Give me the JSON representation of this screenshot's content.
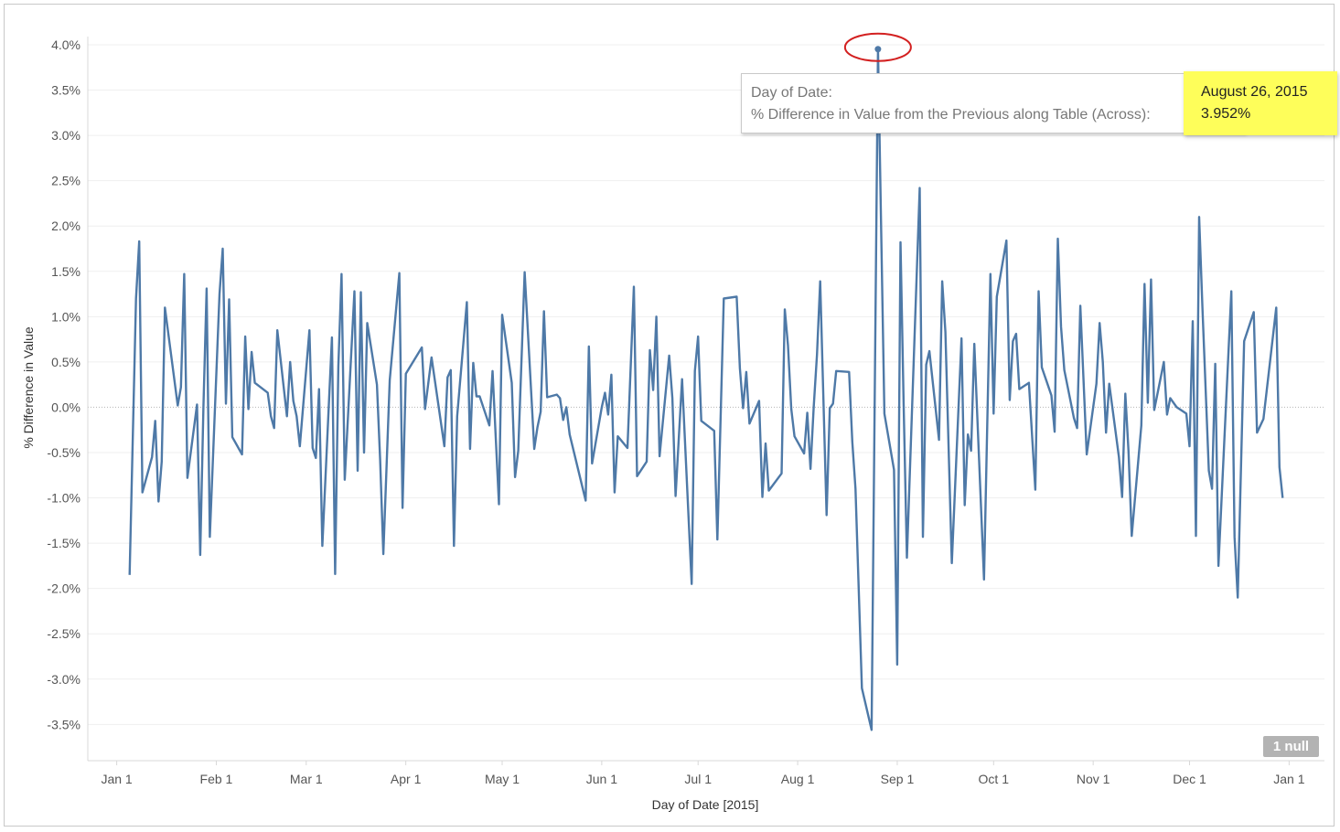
{
  "chart_data": {
    "type": "line",
    "xlabel": "Day of Date [2015]",
    "ylabel": "% Difference in Value",
    "x_tick_labels": [
      "Jan 1",
      "Feb 1",
      "Mar 1",
      "Apr 1",
      "May 1",
      "Jun 1",
      "Jul 1",
      "Aug 1",
      "Sep 1",
      "Oct 1",
      "Nov 1",
      "Dec 1",
      "Jan 1"
    ],
    "x_tick_dates": [
      "2015-01-01",
      "2015-02-01",
      "2015-03-01",
      "2015-04-01",
      "2015-05-01",
      "2015-06-01",
      "2015-07-01",
      "2015-08-01",
      "2015-09-01",
      "2015-10-01",
      "2015-11-01",
      "2015-12-01",
      "2016-01-01"
    ],
    "y_tick_labels": [
      "4.0%",
      "3.5%",
      "3.0%",
      "2.5%",
      "2.0%",
      "1.5%",
      "1.0%",
      "0.5%",
      "0.0%",
      "-0.5%",
      "-1.0%",
      "-1.5%",
      "-2.0%",
      "-2.5%",
      "-3.0%",
      "-3.5%"
    ],
    "y_tick_values": [
      4.0,
      3.5,
      3.0,
      2.5,
      2.0,
      1.5,
      1.0,
      0.5,
      0.0,
      -0.5,
      -1.0,
      -1.5,
      -2.0,
      -2.5,
      -3.0,
      -3.5
    ],
    "xlim": [
      "2014-12-23",
      "2016-01-12"
    ],
    "ylim": [
      -3.9,
      4.05
    ],
    "grid": true,
    "null_count_label": "1 null",
    "series": [
      {
        "color": "#4e79a7",
        "points": [
          [
            "2015-01-05",
            -1.85
          ],
          [
            "2015-01-07",
            1.2
          ],
          [
            "2015-01-08",
            1.83
          ],
          [
            "2015-01-09",
            -0.94
          ],
          [
            "2015-01-12",
            -0.55
          ],
          [
            "2015-01-13",
            -0.15
          ],
          [
            "2015-01-14",
            -1.04
          ],
          [
            "2015-01-15",
            -0.6
          ],
          [
            "2015-01-16",
            1.1
          ],
          [
            "2015-01-20",
            0.02
          ],
          [
            "2015-01-21",
            0.22
          ],
          [
            "2015-01-22",
            1.47
          ],
          [
            "2015-01-23",
            -0.78
          ],
          [
            "2015-01-26",
            0.03
          ],
          [
            "2015-01-27",
            -1.63
          ],
          [
            "2015-01-28",
            0.0
          ],
          [
            "2015-01-29",
            1.31
          ],
          [
            "2015-01-30",
            -1.43
          ],
          [
            "2015-02-02",
            1.25
          ],
          [
            "2015-02-03",
            1.75
          ],
          [
            "2015-02-04",
            0.04
          ],
          [
            "2015-02-05",
            1.19
          ],
          [
            "2015-02-06",
            -0.33
          ],
          [
            "2015-02-09",
            -0.52
          ],
          [
            "2015-02-10",
            0.78
          ],
          [
            "2015-02-11",
            -0.02
          ],
          [
            "2015-02-12",
            0.61
          ],
          [
            "2015-02-13",
            0.27
          ],
          [
            "2015-02-17",
            0.16
          ],
          [
            "2015-02-18",
            -0.1
          ],
          [
            "2015-02-19",
            -0.23
          ],
          [
            "2015-02-20",
            0.85
          ],
          [
            "2015-02-23",
            -0.1
          ],
          [
            "2015-02-24",
            0.5
          ],
          [
            "2015-02-25",
            0.07
          ],
          [
            "2015-02-26",
            -0.1
          ],
          [
            "2015-02-27",
            -0.43
          ],
          [
            "2015-03-02",
            0.85
          ],
          [
            "2015-03-03",
            -0.45
          ],
          [
            "2015-03-04",
            -0.56
          ],
          [
            "2015-03-05",
            0.2
          ],
          [
            "2015-03-06",
            -1.53
          ],
          [
            "2015-03-09",
            0.77
          ],
          [
            "2015-03-10",
            -1.84
          ],
          [
            "2015-03-11",
            0.45
          ],
          [
            "2015-03-12",
            1.47
          ],
          [
            "2015-03-13",
            -0.8
          ],
          [
            "2015-03-16",
            1.28
          ],
          [
            "2015-03-17",
            -0.7
          ],
          [
            "2015-03-18",
            1.27
          ],
          [
            "2015-03-19",
            -0.5
          ],
          [
            "2015-03-20",
            0.93
          ],
          [
            "2015-03-23",
            0.25
          ],
          [
            "2015-03-24",
            -0.58
          ],
          [
            "2015-03-25",
            -1.62
          ],
          [
            "2015-03-27",
            0.3
          ],
          [
            "2015-03-30",
            1.48
          ],
          [
            "2015-03-31",
            -1.11
          ],
          [
            "2015-04-01",
            0.37
          ],
          [
            "2015-04-06",
            0.66
          ],
          [
            "2015-04-07",
            -0.02
          ],
          [
            "2015-04-09",
            0.55
          ],
          [
            "2015-04-13",
            -0.43
          ],
          [
            "2015-04-14",
            0.33
          ],
          [
            "2015-04-15",
            0.41
          ],
          [
            "2015-04-16",
            -1.53
          ],
          [
            "2015-04-17",
            -0.1
          ],
          [
            "2015-04-20",
            1.16
          ],
          [
            "2015-04-21",
            -0.46
          ],
          [
            "2015-04-22",
            0.49
          ],
          [
            "2015-04-23",
            0.12
          ],
          [
            "2015-04-24",
            0.12
          ],
          [
            "2015-04-27",
            -0.2
          ],
          [
            "2015-04-28",
            0.4
          ],
          [
            "2015-04-30",
            -1.07
          ],
          [
            "2015-05-01",
            1.02
          ],
          [
            "2015-05-04",
            0.27
          ],
          [
            "2015-05-05",
            -0.77
          ],
          [
            "2015-05-06",
            -0.48
          ],
          [
            "2015-05-08",
            1.49
          ],
          [
            "2015-05-11",
            -0.46
          ],
          [
            "2015-05-12",
            -0.22
          ],
          [
            "2015-05-13",
            -0.05
          ],
          [
            "2015-05-14",
            1.06
          ],
          [
            "2015-05-15",
            0.11
          ],
          [
            "2015-05-18",
            0.14
          ],
          [
            "2015-05-19",
            0.1
          ],
          [
            "2015-05-20",
            -0.14
          ],
          [
            "2015-05-21",
            0.0
          ],
          [
            "2015-05-22",
            -0.3
          ],
          [
            "2015-05-27",
            -1.03
          ],
          [
            "2015-05-28",
            0.67
          ],
          [
            "2015-05-29",
            -0.62
          ],
          [
            "2015-06-01",
            0.0
          ],
          [
            "2015-06-02",
            0.16
          ],
          [
            "2015-06-03",
            -0.08
          ],
          [
            "2015-06-04",
            0.36
          ],
          [
            "2015-06-05",
            -0.94
          ],
          [
            "2015-06-06",
            -0.32
          ],
          [
            "2015-06-09",
            -0.45
          ],
          [
            "2015-06-11",
            1.33
          ],
          [
            "2015-06-12",
            -0.76
          ],
          [
            "2015-06-15",
            -0.6
          ],
          [
            "2015-06-16",
            0.63
          ],
          [
            "2015-06-17",
            0.19
          ],
          [
            "2015-06-18",
            1.0
          ],
          [
            "2015-06-19",
            -0.54
          ],
          [
            "2015-06-22",
            0.57
          ],
          [
            "2015-06-23",
            0.1
          ],
          [
            "2015-06-24",
            -0.98
          ],
          [
            "2015-06-26",
            0.31
          ],
          [
            "2015-06-29",
            -1.95
          ],
          [
            "2015-06-30",
            0.4
          ],
          [
            "2015-07-01",
            0.78
          ],
          [
            "2015-07-02",
            -0.15
          ],
          [
            "2015-07-06",
            -0.26
          ],
          [
            "2015-07-07",
            -1.46
          ],
          [
            "2015-07-09",
            1.2
          ],
          [
            "2015-07-13",
            1.22
          ],
          [
            "2015-07-14",
            0.43
          ],
          [
            "2015-07-15",
            -0.01
          ],
          [
            "2015-07-16",
            0.39
          ],
          [
            "2015-07-17",
            -0.18
          ],
          [
            "2015-07-20",
            0.07
          ],
          [
            "2015-07-21",
            -0.99
          ],
          [
            "2015-07-22",
            -0.4
          ],
          [
            "2015-07-23",
            -0.92
          ],
          [
            "2015-07-27",
            -0.73
          ],
          [
            "2015-07-28",
            1.08
          ],
          [
            "2015-07-29",
            0.68
          ],
          [
            "2015-07-30",
            -0.02
          ],
          [
            "2015-07-31",
            -0.32
          ],
          [
            "2015-08-03",
            -0.51
          ],
          [
            "2015-08-04",
            -0.06
          ],
          [
            "2015-08-05",
            -0.68
          ],
          [
            "2015-08-06",
            0.0
          ],
          [
            "2015-08-07",
            0.58
          ],
          [
            "2015-08-08",
            1.39
          ],
          [
            "2015-08-10",
            -1.19
          ],
          [
            "2015-08-11",
            -0.01
          ],
          [
            "2015-08-12",
            0.04
          ],
          [
            "2015-08-13",
            0.4
          ],
          [
            "2015-08-17",
            0.39
          ],
          [
            "2015-08-18",
            -0.38
          ],
          [
            "2015-08-19",
            -0.9
          ],
          [
            "2015-08-21",
            -3.1
          ],
          [
            "2015-08-24",
            -3.56
          ],
          [
            "2015-08-26",
            3.952
          ],
          [
            "2015-08-28",
            -0.07
          ],
          [
            "2015-08-31",
            -0.69
          ],
          [
            "2015-09-01",
            -2.84
          ],
          [
            "2015-09-02",
            1.82
          ],
          [
            "2015-09-03",
            0.0
          ],
          [
            "2015-09-04",
            -1.66
          ],
          [
            "2015-09-08",
            2.42
          ],
          [
            "2015-09-09",
            -1.43
          ],
          [
            "2015-09-10",
            0.47
          ],
          [
            "2015-09-11",
            0.62
          ],
          [
            "2015-09-14",
            -0.36
          ],
          [
            "2015-09-15",
            1.39
          ],
          [
            "2015-09-16",
            0.83
          ],
          [
            "2015-09-18",
            -1.72
          ],
          [
            "2015-09-21",
            0.76
          ],
          [
            "2015-09-22",
            -1.08
          ],
          [
            "2015-09-23",
            -0.3
          ],
          [
            "2015-09-24",
            -0.48
          ],
          [
            "2015-09-25",
            0.7
          ],
          [
            "2015-09-28",
            -1.9
          ],
          [
            "2015-09-30",
            1.47
          ],
          [
            "2015-10-01",
            -0.07
          ],
          [
            "2015-10-02",
            1.22
          ],
          [
            "2015-10-05",
            1.84
          ],
          [
            "2015-10-06",
            0.08
          ],
          [
            "2015-10-07",
            0.73
          ],
          [
            "2015-10-08",
            0.81
          ],
          [
            "2015-10-09",
            0.2
          ],
          [
            "2015-10-12",
            0.27
          ],
          [
            "2015-10-14",
            -0.91
          ],
          [
            "2015-10-15",
            1.28
          ],
          [
            "2015-10-16",
            0.44
          ],
          [
            "2015-10-19",
            0.13
          ],
          [
            "2015-10-20",
            -0.27
          ],
          [
            "2015-10-21",
            1.86
          ],
          [
            "2015-10-22",
            0.89
          ],
          [
            "2015-10-23",
            0.41
          ],
          [
            "2015-10-26",
            -0.12
          ],
          [
            "2015-10-27",
            -0.23
          ],
          [
            "2015-10-28",
            1.12
          ],
          [
            "2015-10-30",
            -0.52
          ],
          [
            "2015-11-02",
            0.26
          ],
          [
            "2015-11-03",
            0.93
          ],
          [
            "2015-11-04",
            0.5
          ],
          [
            "2015-11-05",
            -0.28
          ],
          [
            "2015-11-06",
            0.26
          ],
          [
            "2015-11-09",
            -0.55
          ],
          [
            "2015-11-10",
            -0.99
          ],
          [
            "2015-11-11",
            0.15
          ],
          [
            "2015-11-12",
            -0.49
          ],
          [
            "2015-11-13",
            -1.42
          ],
          [
            "2015-11-16",
            -0.2
          ],
          [
            "2015-11-17",
            1.36
          ],
          [
            "2015-11-18",
            0.05
          ],
          [
            "2015-11-19",
            1.41
          ],
          [
            "2015-11-20",
            -0.03
          ],
          [
            "2015-11-23",
            0.5
          ],
          [
            "2015-11-24",
            -0.08
          ],
          [
            "2015-11-25",
            0.1
          ],
          [
            "2015-11-27",
            0.0
          ],
          [
            "2015-11-30",
            -0.07
          ],
          [
            "2015-12-01",
            -0.43
          ],
          [
            "2015-12-02",
            0.95
          ],
          [
            "2015-12-03",
            -1.42
          ],
          [
            "2015-12-04",
            2.1
          ],
          [
            "2015-12-05",
            1.1
          ],
          [
            "2015-12-07",
            -0.7
          ],
          [
            "2015-12-08",
            -0.9
          ],
          [
            "2015-12-09",
            0.48
          ],
          [
            "2015-12-10",
            -1.75
          ],
          [
            "2015-12-14",
            1.28
          ],
          [
            "2015-12-15",
            -1.43
          ],
          [
            "2015-12-16",
            -2.1
          ],
          [
            "2015-12-18",
            0.73
          ],
          [
            "2015-12-21",
            1.05
          ],
          [
            "2015-12-22",
            -0.28
          ],
          [
            "2015-12-24",
            -0.13
          ],
          [
            "2015-12-28",
            1.1
          ],
          [
            "2015-12-29",
            -0.66
          ],
          [
            "2015-12-30",
            -1.0
          ]
        ]
      }
    ],
    "highlight": {
      "x": "2015-08-26",
      "y": 3.952
    }
  },
  "tooltip": {
    "date_label": "Day of Date:",
    "date_value": "August 26, 2015",
    "measure_label": "% Difference in Value from the Previous along Table (Across):",
    "measure_value": "3.952%",
    "highlight_color": "#fefe5a"
  },
  "annotation": {
    "circle_color": "#d32020"
  }
}
